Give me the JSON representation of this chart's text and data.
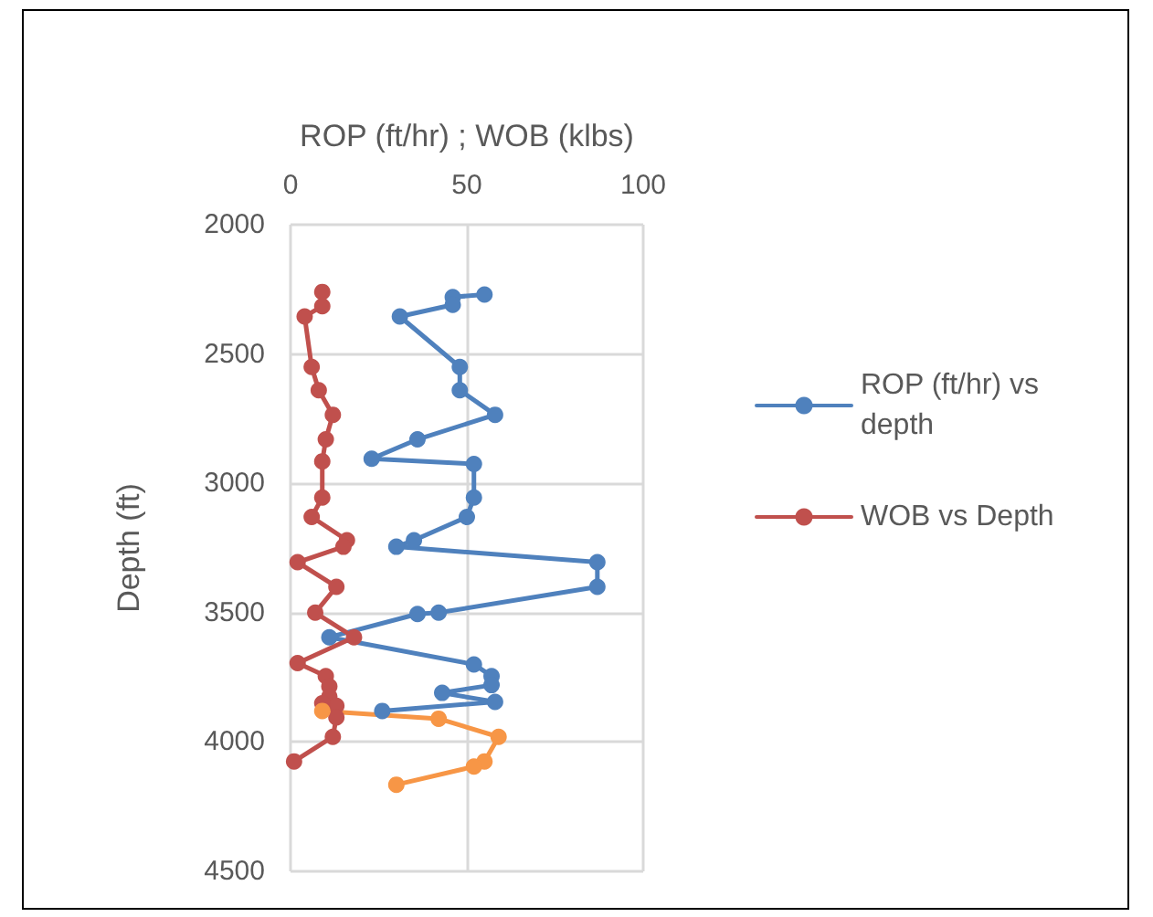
{
  "chart_data": {
    "type": "line",
    "xlabel": "ROP (ft/hr) ; WOB (klbs)",
    "ylabel": "Depth (ft)",
    "xlim": [
      0,
      100
    ],
    "xticks": [
      0,
      50,
      100
    ],
    "ylim": [
      4500,
      2000
    ],
    "yticks": [
      2000,
      2500,
      3000,
      3500,
      4000,
      4500
    ],
    "grid": true,
    "legend": "right",
    "marker": "circle",
    "series": [
      {
        "name": "ROP (ft/hr) vs depth",
        "color": "#4f81bd",
        "x": [
          55,
          46,
          46,
          31,
          48,
          48,
          58,
          36,
          23,
          52,
          52,
          50,
          35,
          30,
          87,
          87,
          42,
          36,
          11,
          52,
          57,
          57,
          43,
          58,
          26
        ],
        "values": [
          2270,
          2280,
          2310,
          2355,
          2550,
          2640,
          2735,
          2830,
          2905,
          2925,
          3055,
          3130,
          3220,
          3245,
          3305,
          3400,
          3500,
          3505,
          3595,
          3700,
          3745,
          3780,
          3810,
          3845,
          3880
        ]
      },
      {
        "name": "WOB vs Depth",
        "color": "#c0504d",
        "x": [
          9,
          9,
          4,
          6,
          8,
          12,
          10,
          9,
          9,
          6,
          16,
          15,
          2,
          13,
          7,
          18,
          2,
          10,
          11,
          11,
          13,
          9,
          13,
          12,
          1
        ],
        "values": [
          2260,
          2315,
          2355,
          2550,
          2640,
          2735,
          2830,
          2915,
          3055,
          3130,
          3220,
          3245,
          3305,
          3400,
          3500,
          3595,
          3695,
          3745,
          3785,
          3825,
          3860,
          3850,
          3905,
          3980,
          4075
        ]
      },
      {
        "color": "#f79646",
        "x": [
          9,
          42,
          59,
          55,
          52,
          30
        ],
        "values": [
          3880,
          3910,
          3980,
          4075,
          4095,
          4165
        ]
      }
    ]
  }
}
